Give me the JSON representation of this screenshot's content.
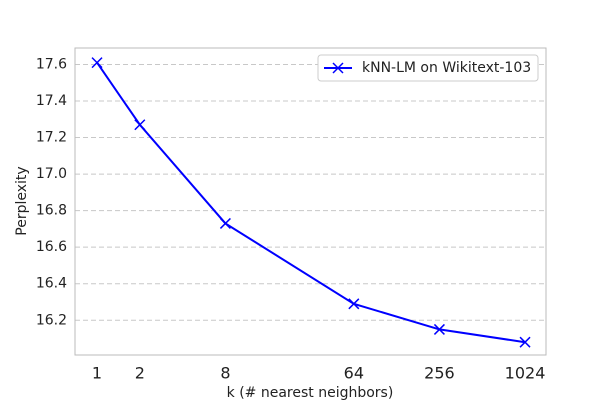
{
  "chart_data": {
    "type": "line",
    "x_label": "k (# nearest neighbors)",
    "y_label": "Perplexity",
    "x": [
      1,
      2,
      8,
      64,
      256,
      1024
    ],
    "series": [
      {
        "name": "kNN-LM on Wikitext-103",
        "color": "#0000ff",
        "marker": "x",
        "values": [
          17.61,
          17.27,
          16.73,
          16.29,
          16.15,
          16.08
        ]
      }
    ],
    "x_scale": "log2",
    "xlim": [
      0.7,
      1438
    ],
    "xticks": [
      1,
      2,
      8,
      64,
      256,
      1024
    ],
    "ylim": [
      16.01,
      17.69
    ],
    "yticks": [
      16.2,
      16.4,
      16.6,
      16.8,
      {
        "value": 17.0,
        "label": "17.0"
      },
      17.2,
      17.4,
      17.6
    ],
    "grid": "y",
    "legend": "upper-right"
  }
}
